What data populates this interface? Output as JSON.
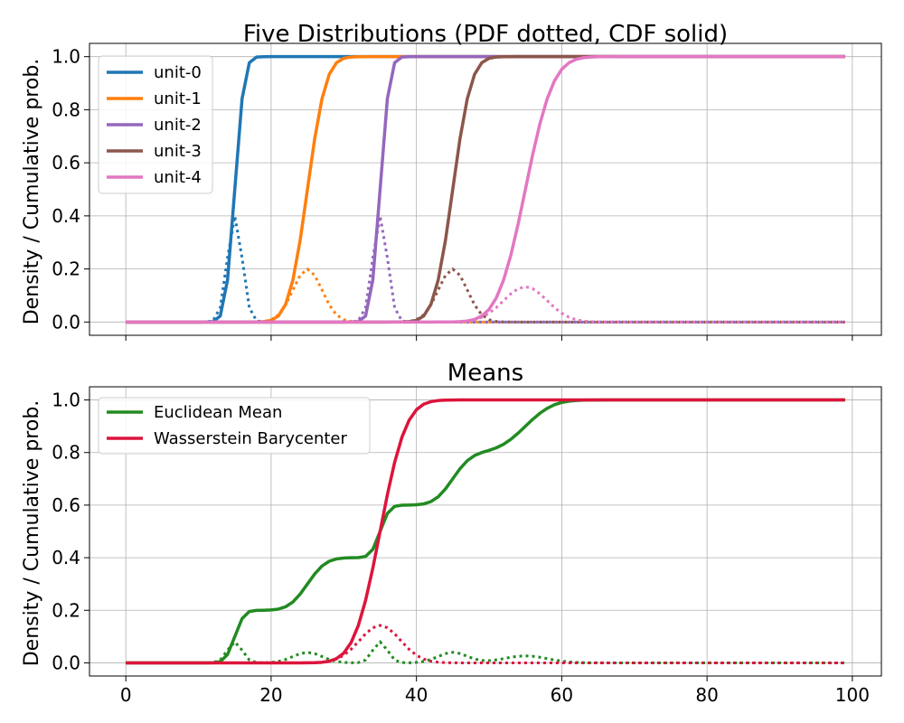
{
  "chart_data": [
    {
      "type": "line",
      "title": "Five Distributions (PDF dotted, CDF solid)",
      "xlabel": "",
      "ylabel": "Density / Cumulative prob.",
      "xlim": [
        -5,
        104
      ],
      "ylim": [
        -0.05,
        1.05
      ],
      "xticks": [
        0,
        20,
        40,
        60,
        80,
        100
      ],
      "yticks": [
        0.0,
        0.2,
        0.4,
        0.6,
        0.8,
        1.0
      ],
      "ytick_labels": [
        "0.0",
        "0.2",
        "0.4",
        "0.6",
        "0.8",
        "1.0"
      ],
      "xtick_labels_visible": false,
      "grid": true,
      "legend_position": "upper-left",
      "series": [
        {
          "name": "unit-0",
          "color": "#1f77b4",
          "mean": 15,
          "sd": 1.0,
          "x": [
            0,
            99
          ]
        },
        {
          "name": "unit-1",
          "color": "#ff7f0e",
          "mean": 25,
          "sd": 2.0,
          "x": [
            0,
            99
          ]
        },
        {
          "name": "unit-2",
          "color": "#9467bd",
          "mean": 35,
          "sd": 1.0,
          "x": [
            0,
            99
          ]
        },
        {
          "name": "unit-3",
          "color": "#8c564b",
          "mean": 45,
          "sd": 2.0,
          "x": [
            0,
            99
          ]
        },
        {
          "name": "unit-4",
          "color": "#e377c2",
          "mean": 55,
          "sd": 3.0,
          "x": [
            0,
            99
          ]
        }
      ]
    },
    {
      "type": "line",
      "title": "Means",
      "xlabel": "",
      "ylabel": "Density / Cumulative prob.",
      "xlim": [
        -5,
        104
      ],
      "ylim": [
        -0.05,
        1.05
      ],
      "xticks": [
        0,
        20,
        40,
        60,
        80,
        100
      ],
      "xtick_labels": [
        "0",
        "20",
        "40",
        "60",
        "80",
        "100"
      ],
      "yticks": [
        0.0,
        0.2,
        0.4,
        0.6,
        0.8,
        1.0
      ],
      "ytick_labels": [
        "0.0",
        "0.2",
        "0.4",
        "0.6",
        "0.8",
        "1.0"
      ],
      "grid": true,
      "legend_position": "upper-left",
      "series": [
        {
          "name": "Euclidean Mean",
          "color": "#228b22",
          "method": "average of the five unit distributions"
        },
        {
          "name": "Wasserstein Barycenter",
          "color": "#dc143c",
          "mean": 35,
          "sd": 2.8
        }
      ]
    }
  ]
}
